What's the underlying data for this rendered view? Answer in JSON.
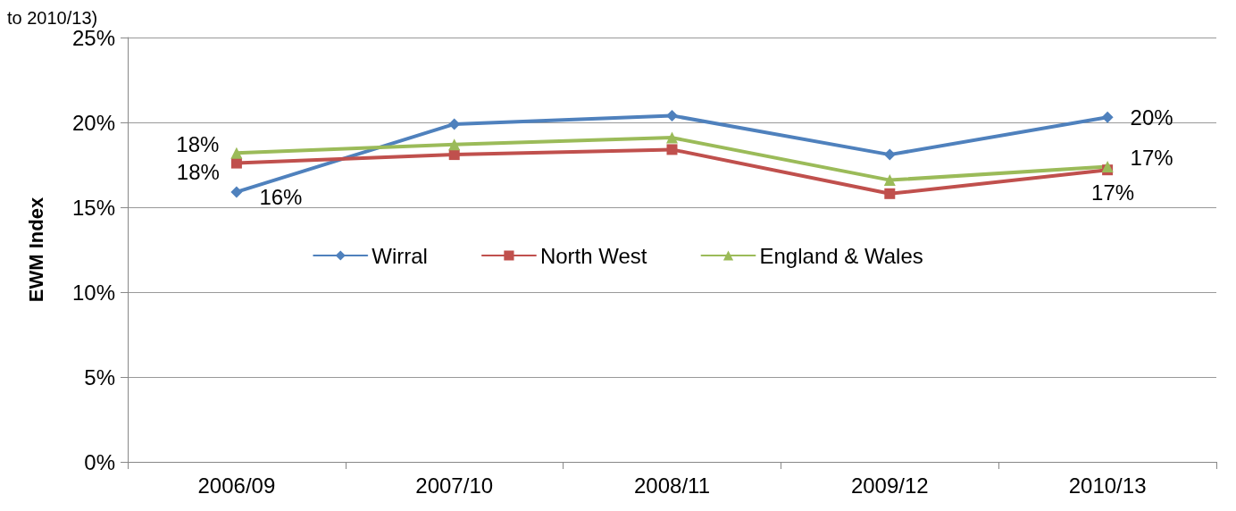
{
  "chart_data": {
    "type": "line",
    "ylabel": "EWM Index",
    "annotations": [
      "to 2010/13)"
    ],
    "categories": [
      "2006/09",
      "2007/10",
      "2008/11",
      "2009/12",
      "2010/13"
    ],
    "series": [
      {
        "name": "Wirral",
        "color": "#4f81bd",
        "marker": "diamond",
        "values": [
          15.9,
          19.9,
          20.4,
          18.1,
          20.3
        ],
        "value_labels": [
          "16%",
          null,
          null,
          null,
          "20%"
        ]
      },
      {
        "name": "North West",
        "color": "#c0504d",
        "marker": "square",
        "values": [
          17.6,
          18.1,
          18.4,
          15.8,
          17.2
        ],
        "value_labels": [
          "18%",
          null,
          null,
          null,
          "17%"
        ]
      },
      {
        "name": "England & Wales",
        "color": "#9bbb59",
        "marker": "triangle",
        "values": [
          18.2,
          18.7,
          19.1,
          16.6,
          17.4
        ],
        "value_labels": [
          "18%",
          null,
          null,
          null,
          "17%"
        ]
      }
    ],
    "ylim": [
      0,
      25
    ],
    "yticks": [
      {
        "value": 0,
        "label": "0%"
      },
      {
        "value": 5,
        "label": "5%"
      },
      {
        "value": 10,
        "label": "10%"
      },
      {
        "value": 15,
        "label": "15%"
      },
      {
        "value": 20,
        "label": "20%"
      },
      {
        "value": 25,
        "label": "25%"
      }
    ],
    "grid": "y",
    "legend": "center",
    "line_style": "solid"
  }
}
